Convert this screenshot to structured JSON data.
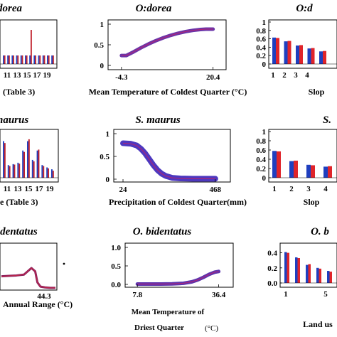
{
  "chart_data": [
    {
      "id": "p00",
      "type": "bar",
      "title": "dorea",
      "xlabel": "(Table 3)",
      "tick_labels": [
        "11",
        "13",
        "15",
        "17",
        "19"
      ],
      "series": [
        {
          "color": "#1f3fbf",
          "values": [
            0.2,
            0.2,
            0.2,
            0.2,
            0.2,
            0.2,
            0.2,
            0.2,
            0.2,
            0.2,
            0.2,
            0.2
          ]
        },
        {
          "color": "#c0202a",
          "values": [
            0.2,
            0.2,
            0.2,
            0.2,
            0.2,
            0.2,
            0.8,
            0.2,
            0.2,
            0.2,
            0.2,
            0.2
          ]
        }
      ]
    },
    {
      "id": "p01",
      "type": "line",
      "title": "O:dorea",
      "xlabel": "Mean Temperature of Coldest Quarter (°C)",
      "xlim": [
        -6,
        22
      ],
      "ylim": [
        0,
        1
      ],
      "xticks": [
        "-4.3",
        "20.4"
      ],
      "yticks": [
        "0",
        "0.5",
        "1"
      ],
      "line_color": "#5a1fa0",
      "x": [
        -4.3,
        -3,
        -1,
        1,
        3,
        5,
        7,
        9,
        11,
        13,
        15,
        17,
        18.5,
        20.4
      ],
      "y": [
        0.24,
        0.24,
        0.33,
        0.43,
        0.52,
        0.6,
        0.67,
        0.73,
        0.78,
        0.82,
        0.85,
        0.87,
        0.88,
        0.88
      ]
    },
    {
      "id": "p02",
      "type": "bar",
      "title": "O:d",
      "xlabel": "Slop",
      "tick_labels": [
        "1",
        "2",
        "3",
        "4"
      ],
      "yticks": [
        "0",
        "0.2",
        "0.4",
        "0.6",
        "0.8",
        "1"
      ],
      "ylim": [
        0,
        1
      ],
      "series": [
        {
          "color": "#1f3fbf",
          "values": [
            0.63,
            0.54,
            0.44,
            0.37,
            0.3
          ]
        },
        {
          "color": "#e0242a",
          "values": [
            0.62,
            0.55,
            0.45,
            0.38,
            0.31
          ]
        }
      ]
    },
    {
      "id": "p10",
      "type": "bar",
      "title": "naurus",
      "xlabel": "e (Table 3)",
      "tick_labels": [
        "11",
        "13",
        "15",
        "17",
        "19"
      ],
      "series": [
        {
          "color": "#1f3fbf",
          "values": [
            0.78,
            0.27,
            0.29,
            0.32,
            0.58,
            0.78,
            0.38,
            0.58,
            0.27,
            0.22,
            0.18
          ]
        },
        {
          "color": "#c0202a",
          "values": [
            0.74,
            0.25,
            0.28,
            0.3,
            0.55,
            0.82,
            0.35,
            0.6,
            0.25,
            0.2,
            0.15
          ]
        }
      ]
    },
    {
      "id": "p11",
      "type": "line",
      "title": "S. maurus",
      "xlabel": "Precipitation of Coldest Quarter(mm)",
      "xlim": [
        0,
        520
      ],
      "ylim": [
        0,
        1
      ],
      "xticks": [
        "24",
        "468"
      ],
      "yticks": [
        "0",
        "0.5",
        "1"
      ],
      "line_color": "#3a22b8",
      "x": [
        24,
        60,
        90,
        110,
        130,
        150,
        170,
        190,
        210,
        230,
        260,
        300,
        360,
        420,
        468
      ],
      "y": [
        0.79,
        0.78,
        0.74,
        0.67,
        0.57,
        0.44,
        0.31,
        0.2,
        0.12,
        0.07,
        0.03,
        0.015,
        0.01,
        0.01,
        0.01
      ]
    },
    {
      "id": "p12",
      "type": "bar",
      "title": "S.",
      "xlabel": "Slop",
      "tick_labels": [
        "1",
        "2",
        "3",
        "4"
      ],
      "yticks": [
        "0",
        "0.2",
        "0.4",
        "0.6",
        "0.8",
        "1"
      ],
      "ylim": [
        0,
        1
      ],
      "series": [
        {
          "color": "#1f3fbf",
          "values": [
            0.58,
            0.36,
            0.28,
            0.24
          ]
        },
        {
          "color": "#e0242a",
          "values": [
            0.57,
            0.37,
            0.27,
            0.25
          ]
        }
      ]
    },
    {
      "id": "p20",
      "type": "line",
      "title": "identatus",
      "xlabel": "Annual Range (°C)",
      "xticks": [
        "44.3"
      ],
      "line_color": "#8a2060",
      "x": [
        0,
        10,
        20,
        30,
        35,
        40,
        45,
        48,
        52,
        58,
        65,
        72
      ],
      "y": [
        0.3,
        0.31,
        0.32,
        0.34,
        0.42,
        0.5,
        0.42,
        0.15,
        0.05,
        0.03,
        0.02,
        0.02
      ]
    },
    {
      "id": "p21",
      "type": "line",
      "title": "O. bidentatus",
      "xlabel": "Mean Temperature of Driest Quarter (°C)",
      "xlabel_lines": [
        "Mean Temperature of",
        "Driest Quarter"
      ],
      "xlabel_unit": "(°C)",
      "xlim": [
        5,
        40
      ],
      "ylim": [
        0,
        1
      ],
      "xticks": [
        "7.8",
        "36.4"
      ],
      "yticks": [
        "0.0",
        "0.5",
        "1.0"
      ],
      "line_color": "#4a1fa6",
      "x": [
        7.8,
        12,
        16,
        20,
        24,
        27,
        29,
        31,
        33,
        35,
        36.4
      ],
      "y": [
        0.01,
        0.01,
        0.01,
        0.015,
        0.03,
        0.07,
        0.12,
        0.19,
        0.27,
        0.33,
        0.35
      ]
    },
    {
      "id": "p22",
      "type": "bar",
      "title": "O. b",
      "xlabel": "Land us",
      "tick_labels": [
        "1",
        "5"
      ],
      "yticks": [
        "0.0",
        "0.2",
        "0.4"
      ],
      "ylim": [
        0,
        0.5
      ],
      "series": [
        {
          "color": "#1f3fbf",
          "values": [
            0.41,
            0.34,
            0.24,
            0.2,
            0.16
          ]
        },
        {
          "color": "#e0242a",
          "values": [
            0.4,
            0.33,
            0.25,
            0.19,
            0.15
          ]
        }
      ]
    }
  ]
}
